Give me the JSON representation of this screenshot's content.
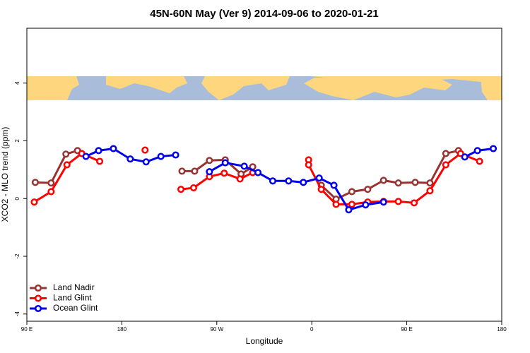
{
  "chart_data": {
    "type": "line",
    "title": "45N-60N May (Ver 9)   2014-09-06 to 2020-01-21",
    "xlabel": "Longitude",
    "ylabel": "XCO2 - MLO trend (ppm)",
    "xlim": [
      90,
      540
    ],
    "xticks": [
      {
        "value": 90,
        "label": "90 E"
      },
      {
        "value": 180,
        "label": "180"
      },
      {
        "value": 270,
        "label": "90 W"
      },
      {
        "value": 360,
        "label": "0"
      },
      {
        "value": 450,
        "label": "90 E"
      },
      {
        "value": 540,
        "label": "180"
      }
    ],
    "ylim": [
      -4.25,
      5.9
    ],
    "yticks": [
      -4,
      -2,
      0,
      2,
      4
    ],
    "legend": "lower left",
    "series": [
      {
        "name": "Land Nadir",
        "color": "#993333",
        "x": [
          98,
          113,
          127,
          138,
          null,
          237,
          249,
          263,
          278,
          293,
          304,
          null,
          369,
          383,
          398,
          413,
          428,
          442,
          458,
          472,
          487,
          499
        ],
        "values": [
          0.56,
          0.54,
          1.54,
          1.66,
          null,
          0.95,
          0.95,
          1.32,
          1.34,
          0.85,
          1.1,
          null,
          0.46,
          -0.02,
          0.24,
          0.32,
          0.63,
          0.54,
          0.56,
          0.54,
          1.56,
          1.66
        ]
      },
      {
        "name": "Land Glint",
        "color": "#ff0000",
        "x": [
          97,
          113,
          128,
          142,
          159,
          null,
          202,
          null,
          236,
          248,
          263,
          277,
          292,
          304,
          null,
          357,
          357,
          369,
          383,
          398,
          413,
          428,
          442,
          457,
          472,
          487,
          501,
          519
        ],
        "values": [
          -0.12,
          0.24,
          1.17,
          1.56,
          1.29,
          null,
          1.68,
          null,
          0.32,
          0.37,
          0.76,
          0.88,
          0.68,
          0.9,
          null,
          1.34,
          1.17,
          0.32,
          -0.2,
          -0.2,
          -0.12,
          -0.1,
          -0.1,
          -0.15,
          0.27,
          1.17,
          1.56,
          1.29
        ]
      },
      {
        "name": "Ocean Glint",
        "color": "#0000ee",
        "x": [
          146,
          158,
          172,
          188,
          203,
          217,
          231,
          null,
          263,
          278,
          296,
          309,
          323,
          338,
          352,
          367,
          381,
          395,
          411,
          428,
          null,
          505,
          517,
          532
        ],
        "values": [
          1.46,
          1.66,
          1.73,
          1.37,
          1.27,
          1.46,
          1.51,
          null,
          0.93,
          1.24,
          1.12,
          0.9,
          0.61,
          0.61,
          0.56,
          0.71,
          0.46,
          -0.39,
          -0.22,
          -0.12,
          null,
          1.44,
          1.66,
          1.73
        ]
      }
    ]
  }
}
